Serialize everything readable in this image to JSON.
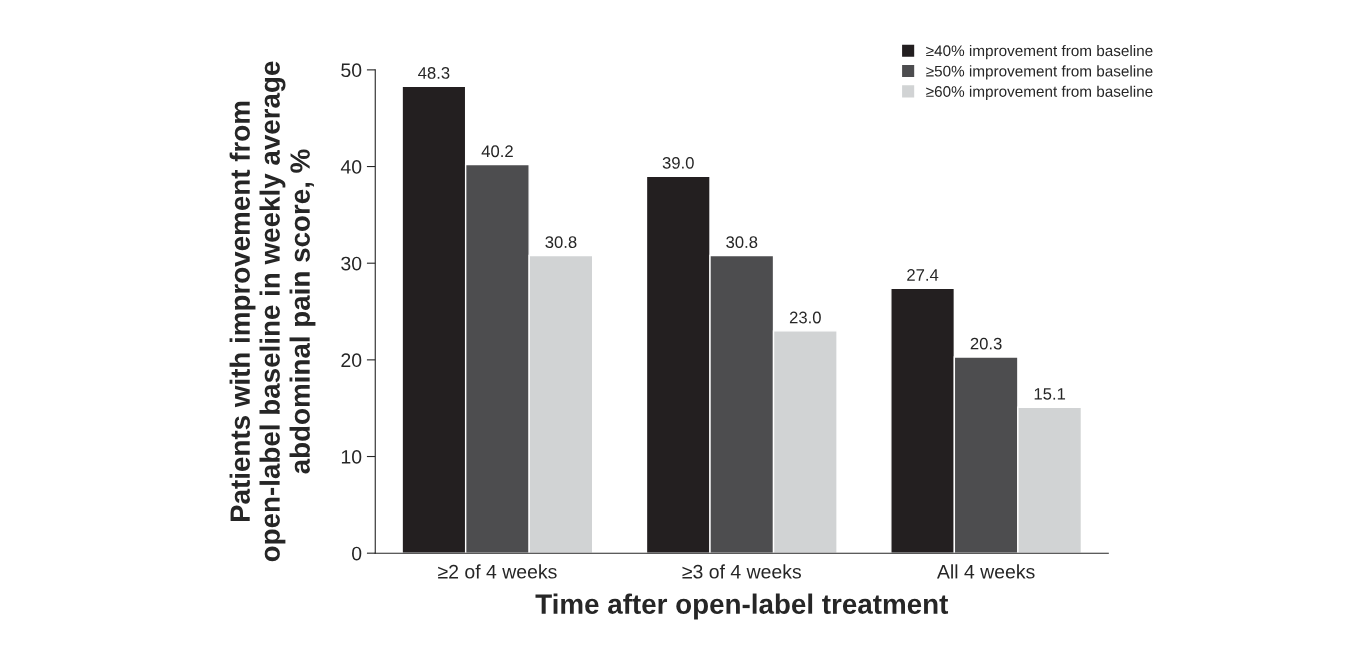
{
  "chart_data": {
    "type": "bar",
    "ylabel": "Patients with improvement from\nopen-label baseline in weekly average\nabdominal pain score, %",
    "xlabel": "Time after open-label treatment",
    "categories": [
      "≥2 of 4 weeks",
      "≥3 of 4 weeks",
      "All 4 weeks"
    ],
    "series": [
      {
        "name": "≥40% improvement from baseline",
        "color": "#231f20",
        "values": [
          48.3,
          39.0,
          27.4
        ],
        "value_labels": [
          "48.3",
          "39.0",
          "27.4"
        ]
      },
      {
        "name": "≥50% improvement from baseline",
        "color": "#4d4d4f",
        "values": [
          40.2,
          30.8,
          20.3
        ],
        "value_labels": [
          "40.2",
          "30.8",
          "20.3"
        ]
      },
      {
        "name": "≥60% improvement from baseline",
        "color": "#d1d3d4",
        "values": [
          30.8,
          23.0,
          15.1
        ],
        "value_labels": [
          "30.8",
          "23.0",
          "15.1"
        ]
      }
    ],
    "ylim": [
      0,
      50
    ],
    "yticks": [
      0,
      10,
      20,
      30,
      40,
      50
    ],
    "grid": false,
    "legend": "top right"
  }
}
